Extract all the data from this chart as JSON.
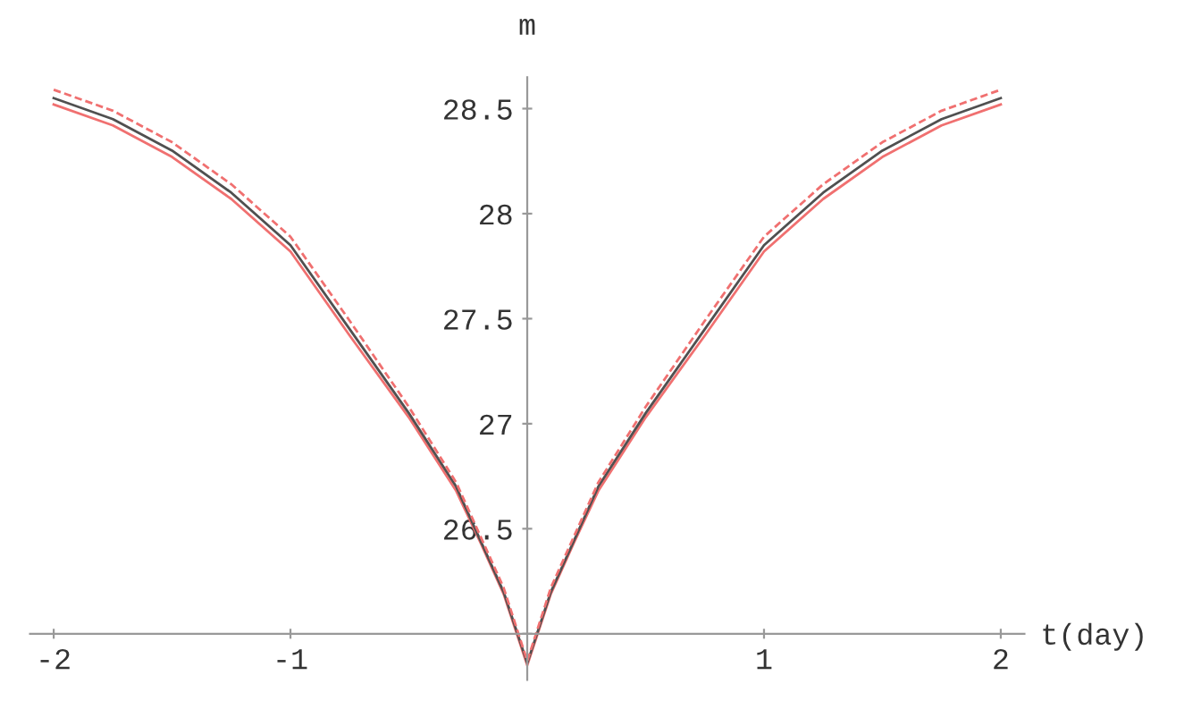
{
  "chart_data": {
    "type": "line",
    "xlabel": "t(day)",
    "ylabel": "m",
    "x": [
      -2,
      -1.75,
      -1.5,
      -1.25,
      -1,
      -0.75,
      -0.5,
      -0.3,
      -0.2,
      -0.1,
      0,
      0.1,
      0.2,
      0.3,
      0.5,
      0.75,
      1,
      1.25,
      1.5,
      1.75,
      2
    ],
    "series": [
      {
        "color": "#f07070",
        "line_style": "solid",
        "values": [
          28.52,
          28.42,
          28.27,
          28.07,
          27.82,
          27.42,
          27.03,
          26.68,
          26.44,
          26.19,
          25.85,
          26.19,
          26.44,
          26.68,
          27.03,
          27.42,
          27.82,
          28.07,
          28.27,
          28.42,
          28.52
        ]
      },
      {
        "color": "#505050",
        "line_style": "solid",
        "values": [
          28.55,
          28.45,
          28.3,
          28.1,
          27.85,
          27.45,
          27.05,
          26.7,
          26.45,
          26.2,
          25.86,
          26.2,
          26.45,
          26.7,
          27.05,
          27.45,
          27.85,
          28.1,
          28.3,
          28.45,
          28.55
        ]
      },
      {
        "color": "#f07070",
        "line_style": "dashed",
        "values": [
          28.59,
          28.49,
          28.34,
          28.14,
          27.89,
          27.49,
          27.08,
          26.72,
          26.47,
          26.22,
          25.87,
          26.22,
          26.47,
          26.72,
          27.08,
          27.49,
          27.89,
          28.14,
          28.34,
          28.49,
          28.59
        ]
      }
    ],
    "xlim": [
      -2.1,
      2.1
    ],
    "ylim": [
      25.78,
      28.65
    ],
    "xticks": [
      -2,
      -1,
      1,
      2
    ],
    "yticks": [
      {
        "value": 26,
        "label": null
      },
      26.5,
      27,
      27.5,
      28,
      28.5
    ],
    "grid": false,
    "legend": false,
    "marker": "none"
  }
}
